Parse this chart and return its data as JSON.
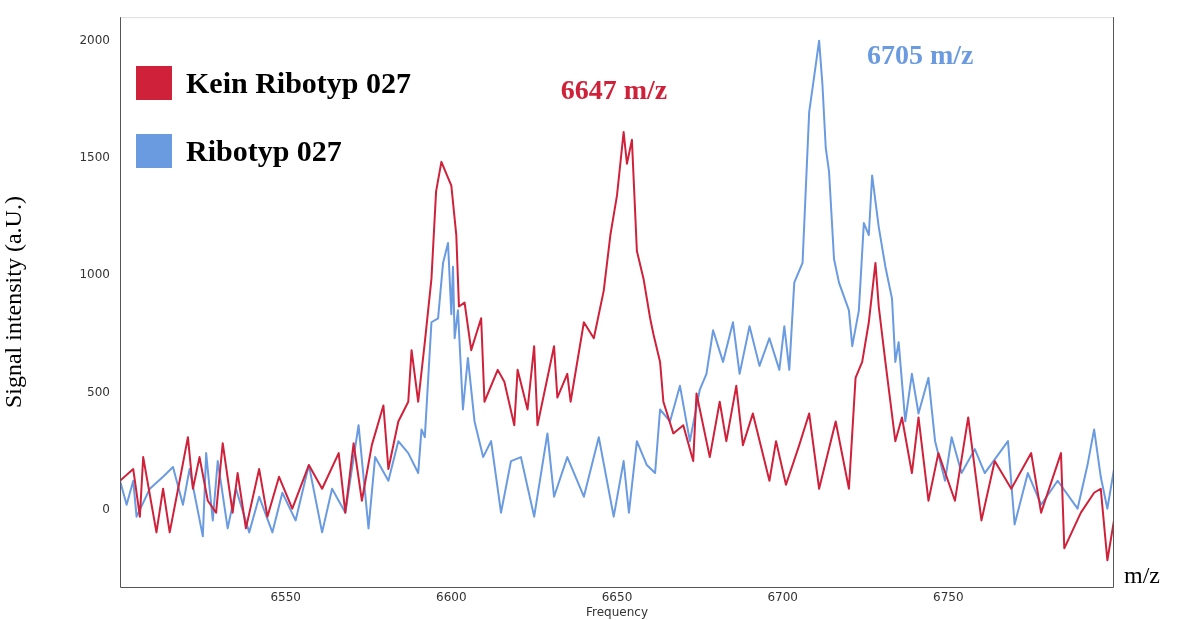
{
  "chart_data": {
    "type": "line",
    "xlabel": "Frequency",
    "ylabel": "Signal intensity (a.U.)",
    "xlim": [
      6500,
      6800
    ],
    "xticks": [
      6550,
      6600,
      6650,
      6700,
      6750
    ],
    "ylim": [
      -330,
      2100
    ],
    "yticks": [
      0,
      500,
      1000,
      1500,
      2000
    ],
    "legend": "top left",
    "marker": "none",
    "annotations": [
      "6647 m/z",
      "6705 m/z",
      "m/z"
    ],
    "series": [
      {
        "name": "Kein Ribotyp 027",
        "color": "#d0213a",
        "x": [
          6500,
          6504,
          6506,
          6507,
          6511,
          6513,
          6515,
          6518,
          6520.5,
          6522,
          6524,
          6526.5,
          6529,
          6531,
          6534,
          6535.5,
          6538,
          6542,
          6544.5,
          6548,
          6552,
          6557,
          6561,
          6566,
          6568,
          6570.5,
          6573,
          6576,
          6579.5,
          6581,
          6584,
          6587,
          6588,
          6590,
          6592,
          6594,
          6595.4,
          6597,
          6600,
          6601.5,
          6602.3,
          6604,
          6606,
          6609,
          6610,
          6614,
          6616,
          6619,
          6620,
          6623,
          6625,
          6626,
          6631,
          6632,
          6635,
          6636,
          6640,
          6643,
          6646,
          6648,
          6650,
          6652,
          6653,
          6654.5,
          6656,
          6658,
          6660,
          6661,
          6663,
          6664,
          6667,
          6670,
          6673,
          6674,
          6678,
          6681,
          6683,
          6686,
          6688,
          6691,
          6696,
          6698,
          6701,
          6705,
          6708,
          6711,
          6716,
          6720,
          6722,
          6724,
          6726,
          6728,
          6729,
          6731,
          6734,
          6736,
          6739,
          6741,
          6744,
          6747,
          6752,
          6756,
          6760,
          6764,
          6769,
          6775,
          6778,
          6784,
          6785,
          6790,
          6794,
          6796,
          6798,
          6800
        ],
        "values": [
          123,
          173,
          -30,
          224,
          -97,
          89,
          -97,
          123,
          309,
          89,
          224,
          38,
          -13,
          283,
          -13,
          156,
          -80,
          173,
          -30,
          140,
          4,
          190,
          89,
          241,
          -13,
          283,
          38,
          275,
          444,
          173,
          376,
          460,
          680,
          460,
          714,
          985,
          1357,
          1483,
          1382,
          1171,
          866,
          883,
          680,
          816,
          460,
          596,
          545,
          360,
          596,
          427,
          697,
          360,
          697,
          478,
          579,
          460,
          799,
          731,
          934,
          1171,
          1340,
          1610,
          1475,
          1577,
          1103,
          985,
          816,
          748,
          630,
          460,
          325,
          360,
          207,
          495,
          224,
          460,
          292,
          528,
          275,
          410,
          123,
          292,
          106,
          275,
          410,
          89,
          376,
          89,
          562,
          630,
          799,
          1052,
          866,
          630,
          292,
          393,
          156,
          393,
          38,
          241,
          38,
          393,
          -46,
          207,
          89,
          241,
          -13,
          241,
          -165,
          -13,
          72,
          89,
          -216,
          -46
        ]
      },
      {
        "name": "Ribotyp 027",
        "color": "#6a9be0",
        "x": [
          6500,
          6502,
          6504,
          6505,
          6509,
          6513,
          6516,
          6519,
          6521,
          6525,
          6526,
          6528,
          6529.5,
          6532.5,
          6535,
          6539,
          6542,
          6546,
          6549,
          6553,
          6557,
          6561,
          6564,
          6568,
          6572,
          6575,
          6577,
          6581,
          6584,
          6587,
          6590,
          6591,
          6592,
          6594,
          6596,
          6597.5,
          6599,
          6600,
          6600.5,
          6601,
          6602,
          6603.5,
          6605,
          6607,
          6609.6,
          6612,
          6615,
          6618,
          6621,
          6625,
          6629,
          6631,
          6635,
          6640,
          6644.5,
          6649,
          6652,
          6653.6,
          6656,
          6659,
          6661.5,
          6663,
          6666,
          6669,
          6672,
          6675,
          6677,
          6679,
          6682,
          6685,
          6687,
          6690,
          6693,
          6696,
          6699,
          6700.5,
          6702,
          6703.5,
          6706,
          6708,
          6709.5,
          6711,
          6712,
          6713,
          6714,
          6715.5,
          6717,
          6720,
          6721,
          6723,
          6724.5,
          6726,
          6727,
          6729,
          6731,
          6733,
          6734,
          6735,
          6737,
          6739,
          6741,
          6744,
          6746,
          6749,
          6751,
          6754,
          6758,
          6761,
          6768,
          6770,
          6774,
          6778,
          6783,
          6789,
          6792,
          6794,
          6796,
          6798,
          6800
        ],
        "values": [
          123,
          21,
          123,
          -30,
          89,
          140,
          182,
          21,
          173,
          -114,
          241,
          -46,
          207,
          -80,
          89,
          -97,
          55,
          -97,
          72,
          -46,
          190,
          -97,
          89,
          -13,
          360,
          -80,
          224,
          123,
          292,
          241,
          156,
          342,
          309,
          799,
          816,
          1052,
          1137,
          833,
          1036,
          731,
          850,
          427,
          647,
          376,
          224,
          292,
          -13,
          207,
          224,
          -30,
          325,
          55,
          224,
          55,
          309,
          -30,
          207,
          -13,
          292,
          190,
          156,
          427,
          376,
          528,
          292,
          512,
          579,
          765,
          630,
          799,
          579,
          782,
          613,
          731,
          596,
          782,
          596,
          968,
          1052,
          1695,
          1847,
          2000,
          1813,
          1543,
          1441,
          1069,
          968,
          850,
          697,
          850,
          1222,
          1171,
          1425,
          1205,
          1036,
          900,
          630,
          714,
          376,
          579,
          410,
          562,
          292,
          123,
          309,
          156,
          258,
          156,
          292,
          -63,
          156,
          21,
          123,
          4,
          190,
          342,
          140,
          4,
          173
        ]
      }
    ]
  }
}
